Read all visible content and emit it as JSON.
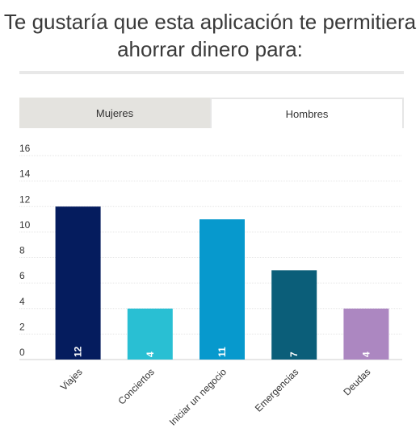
{
  "title": "Te gustaría que esta aplicación te permitiera ahorrar dinero para:",
  "tabs": [
    {
      "label": "Mujeres",
      "active": false
    },
    {
      "label": "Hombres",
      "active": true
    }
  ],
  "chart_data": {
    "type": "bar",
    "title": "",
    "xlabel": "",
    "ylabel": "",
    "ylim": [
      0,
      16
    ],
    "yticks": [
      0,
      2,
      4,
      6,
      8,
      10,
      12,
      14,
      16
    ],
    "categories": [
      "Viajes",
      "Conciertos",
      "Iniciar un negocio",
      "Emergencias",
      "Deudas"
    ],
    "values": [
      12,
      4,
      11,
      7,
      4
    ],
    "colors": [
      "#051c5e",
      "#29bfd3",
      "#0799cd",
      "#0b5e79",
      "#ac87c1"
    ],
    "grid": true,
    "data_labels": true,
    "legend": "none"
  }
}
